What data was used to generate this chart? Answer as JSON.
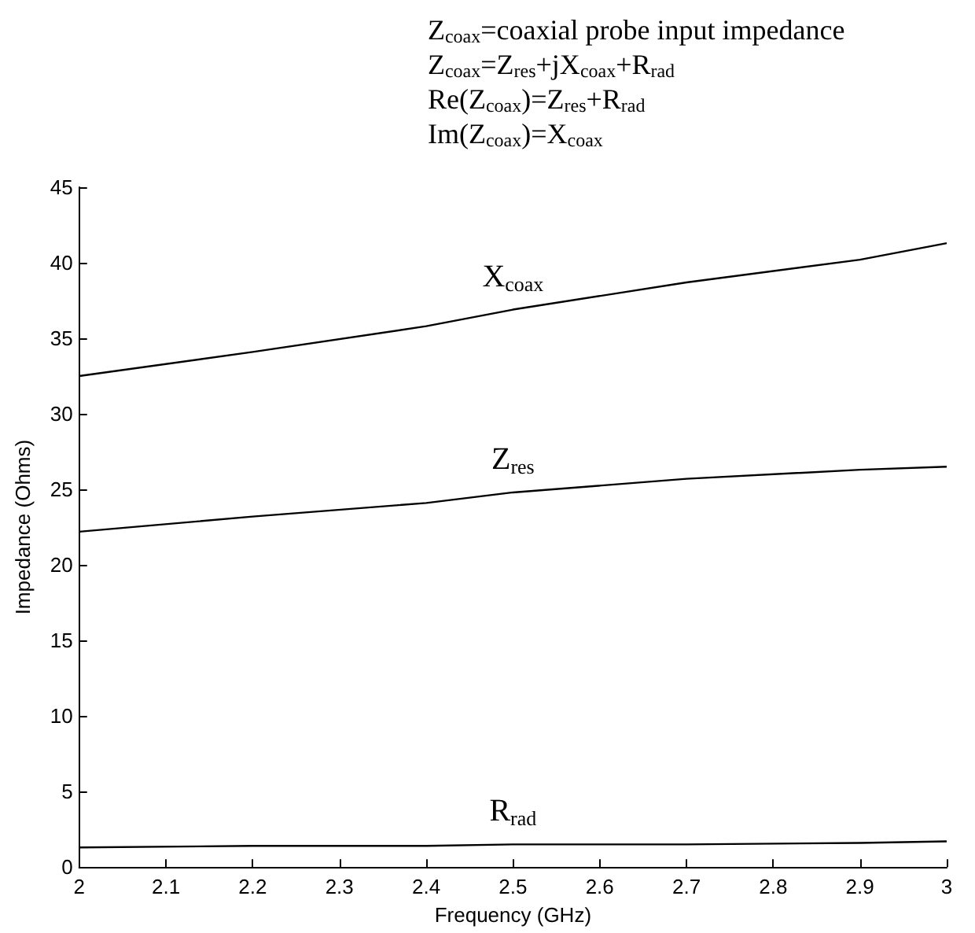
{
  "chart_data": {
    "type": "line",
    "xlabel": "Frequency (GHz)",
    "ylabel": "Impedance (Ohms)",
    "annotations": [
      "Z$_{coax}$=coaxial probe input impedance",
      "Z$_{coax}$=Z$_{res}$+jX$_{coax}$+R$_{rad}$",
      "Re(Z$_{coax}$)=Z$_{res}$+R$_{rad}$",
      "Im(Z$_{coax}$)=X$_{coax}$"
    ],
    "x": [
      2,
      2.2,
      2.4,
      2.5,
      2.7,
      2.9,
      3
    ],
    "series": [
      {
        "name": "X$_{coax}$",
        "color": "#000000",
        "values": [
          32.5,
          34.1,
          35.8,
          36.9,
          38.7,
          40.2,
          41.3
        ]
      },
      {
        "name": "Z$_{res}$",
        "color": "#000000",
        "values": [
          22.2,
          23.2,
          24.1,
          24.8,
          25.7,
          26.3,
          26.5
        ]
      },
      {
        "name": "R$_{rad}$",
        "color": "#000000",
        "values": [
          1.3,
          1.4,
          1.4,
          1.5,
          1.5,
          1.6,
          1.7
        ]
      }
    ],
    "xlim": [
      2,
      3
    ],
    "xticks": [
      2,
      2.1,
      2.2,
      2.3,
      2.4,
      2.5,
      2.6,
      2.7,
      2.8,
      2.9,
      3
    ],
    "ylim": [
      0,
      45
    ],
    "yticks": [
      0,
      5,
      10,
      15,
      20,
      25,
      30,
      35,
      40,
      45
    ],
    "grid": false,
    "legend": false,
    "marker": "none",
    "line_style": "solid"
  }
}
